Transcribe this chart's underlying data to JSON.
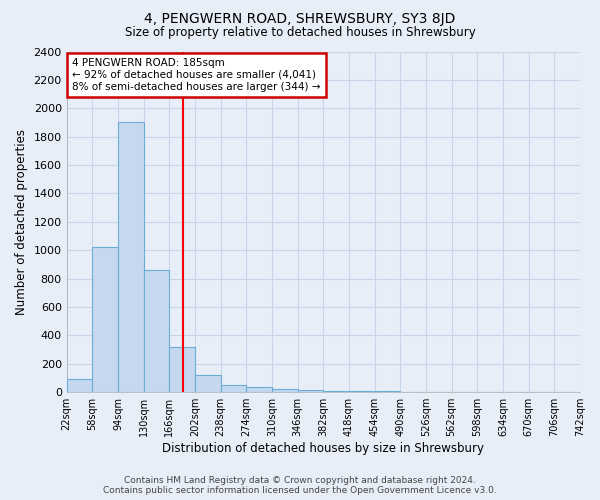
{
  "title": "4, PENGWERN ROAD, SHREWSBURY, SY3 8JD",
  "subtitle": "Size of property relative to detached houses in Shrewsbury",
  "xlabel": "Distribution of detached houses by size in Shrewsbury",
  "ylabel": "Number of detached properties",
  "bin_edges": [
    22,
    58,
    94,
    130,
    166,
    202,
    238,
    274,
    310,
    346,
    382,
    418,
    454,
    490,
    526,
    562,
    598,
    634,
    670,
    706,
    742
  ],
  "bin_labels": [
    "22sqm",
    "58sqm",
    "94sqm",
    "130sqm",
    "166sqm",
    "202sqm",
    "238sqm",
    "274sqm",
    "310sqm",
    "346sqm",
    "382sqm",
    "418sqm",
    "454sqm",
    "490sqm",
    "526sqm",
    "562sqm",
    "598sqm",
    "634sqm",
    "670sqm",
    "706sqm",
    "742sqm"
  ],
  "bar_heights": [
    90,
    1020,
    1900,
    860,
    320,
    120,
    50,
    40,
    20,
    15,
    10,
    8,
    5,
    4,
    3,
    2,
    2,
    1,
    1,
    1
  ],
  "bar_color": "#c5d8f0",
  "bar_edge_color": "#6aaed6",
  "red_line_x": 185,
  "annotation_line1": "4 PENGWERN ROAD: 185sqm",
  "annotation_line2": "← 92% of detached houses are smaller (4,041)",
  "annotation_line3": "8% of semi-detached houses are larger (344) →",
  "annotation_box_color": "#ffffff",
  "annotation_box_edge": "#cc0000",
  "ylim": [
    0,
    2400
  ],
  "background_color": "#e8eef8",
  "grid_color": "#c8d4e8",
  "footer_text": "Contains HM Land Registry data © Crown copyright and database right 2024.\nContains public sector information licensed under the Open Government Licence v3.0."
}
